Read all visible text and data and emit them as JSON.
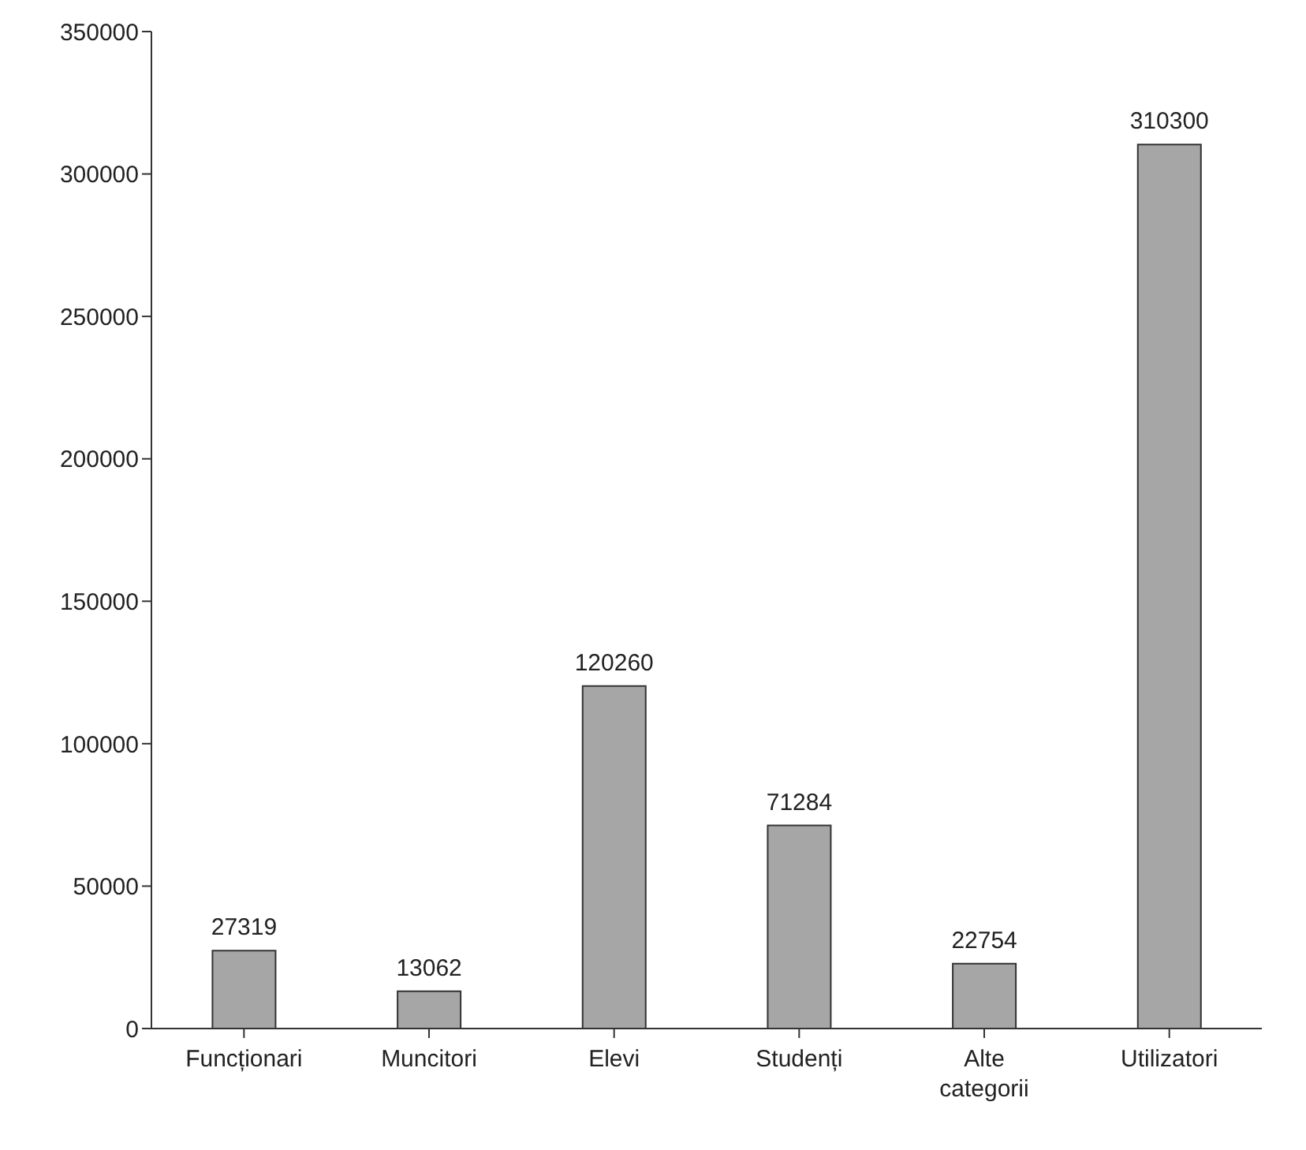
{
  "chart_data": {
    "type": "bar",
    "categories": [
      "Funcționari",
      "Muncitori",
      "Elevi",
      "Studenți",
      "Alte categorii",
      "Utilizatori"
    ],
    "values": [
      27319,
      13062,
      120260,
      71284,
      22754,
      310300
    ],
    "color": "#a6a6a6",
    "ylim": [
      0,
      350000
    ],
    "yticks": [
      0,
      50000,
      100000,
      150000,
      200000,
      250000,
      300000,
      350000
    ],
    "grid": false,
    "data_labels": true
  }
}
